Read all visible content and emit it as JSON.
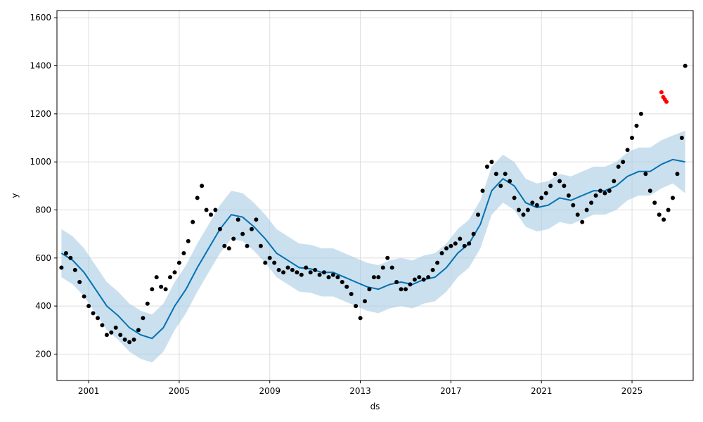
{
  "chart_data": {
    "type": "scatter",
    "title": "",
    "xlabel": "ds",
    "ylabel": "y",
    "xlim": [
      1999.6,
      2027.7
    ],
    "ylim": [
      90,
      1630
    ],
    "x_ticks": [
      2001,
      2005,
      2009,
      2013,
      2017,
      2021,
      2025
    ],
    "x_tick_labels": [
      "2001",
      "2005",
      "2009",
      "2013",
      "2017",
      "2021",
      "2025"
    ],
    "y_ticks": [
      200,
      400,
      600,
      800,
      1000,
      1200,
      1400,
      1600
    ],
    "y_tick_labels": [
      "200",
      "400",
      "600",
      "800",
      "1000",
      "1200",
      "1400",
      "1600"
    ],
    "grid": true,
    "colors": {
      "observed": "#000000",
      "forecast": "#0072B2",
      "interval": "#a6cbe3",
      "outliers": "#ff0000"
    },
    "series": [
      {
        "role": "observed",
        "mark": "scatter",
        "x": [
          1999.8,
          2000.0,
          2000.2,
          2000.4,
          2000.6,
          2000.8,
          2001.0,
          2001.2,
          2001.4,
          2001.6,
          2001.8,
          2002.0,
          2002.2,
          2002.4,
          2002.6,
          2002.8,
          2003.0,
          2003.2,
          2003.4,
          2003.6,
          2003.8,
          2004.0,
          2004.2,
          2004.4,
          2004.6,
          2004.8,
          2005.0,
          2005.2,
          2005.4,
          2005.6,
          2005.8,
          2006.0,
          2006.2,
          2006.4,
          2006.6,
          2006.8,
          2007.0,
          2007.2,
          2007.4,
          2007.6,
          2007.8,
          2008.0,
          2008.2,
          2008.4,
          2008.6,
          2008.8,
          2009.0,
          2009.2,
          2009.4,
          2009.6,
          2009.8,
          2010.0,
          2010.2,
          2010.4,
          2010.6,
          2010.8,
          2011.0,
          2011.2,
          2011.4,
          2011.6,
          2011.8,
          2012.0,
          2012.2,
          2012.4,
          2012.6,
          2012.8,
          2013.0,
          2013.2,
          2013.4,
          2013.6,
          2013.8,
          2014.0,
          2014.2,
          2014.4,
          2014.6,
          2014.8,
          2015.0,
          2015.2,
          2015.4,
          2015.6,
          2015.8,
          2016.0,
          2016.2,
          2016.4,
          2016.6,
          2016.8,
          2017.0,
          2017.2,
          2017.4,
          2017.6,
          2017.8,
          2018.0,
          2018.2,
          2018.4,
          2018.6,
          2018.8,
          2019.0,
          2019.2,
          2019.4,
          2019.6,
          2019.8,
          2020.0,
          2020.2,
          2020.4,
          2020.6,
          2020.8,
          2021.0,
          2021.2,
          2021.4,
          2021.6,
          2021.8,
          2022.0,
          2022.2,
          2022.4,
          2022.6,
          2022.8,
          2023.0,
          2023.2,
          2023.4,
          2023.6,
          2023.8,
          2024.0,
          2024.2,
          2024.4,
          2024.6,
          2024.8,
          2025.0,
          2025.2,
          2025.4,
          2025.6,
          2025.8,
          2026.0,
          2026.2,
          2026.4,
          2026.6,
          2026.8,
          2027.0,
          2027.2,
          2027.35
        ],
        "y": [
          560,
          620,
          600,
          550,
          500,
          440,
          400,
          370,
          350,
          320,
          280,
          290,
          310,
          280,
          260,
          250,
          260,
          300,
          350,
          410,
          470,
          520,
          480,
          470,
          520,
          540,
          580,
          620,
          670,
          750,
          850,
          900,
          800,
          780,
          800,
          720,
          650,
          640,
          680,
          760,
          700,
          650,
          720,
          760,
          650,
          580,
          600,
          580,
          550,
          540,
          560,
          550,
          540,
          530,
          560,
          540,
          550,
          530,
          540,
          520,
          530,
          520,
          500,
          480,
          450,
          400,
          350,
          420,
          470,
          520,
          520,
          560,
          600,
          560,
          500,
          470,
          470,
          490,
          510,
          520,
          510,
          520,
          550,
          580,
          620,
          640,
          650,
          660,
          680,
          650,
          660,
          700,
          780,
          880,
          980,
          1000,
          950,
          900,
          950,
          920,
          850,
          800,
          780,
          800,
          830,
          820,
          850,
          870,
          900,
          950,
          920,
          900,
          860,
          820,
          780,
          750,
          800,
          830,
          860,
          880,
          870,
          880,
          920,
          980,
          1000,
          1050,
          1100,
          1150,
          1200,
          950,
          880,
          830,
          780,
          760,
          800,
          850,
          950,
          1100,
          1400
        ]
      },
      {
        "role": "outliers",
        "mark": "scatter",
        "x": [
          2026.3,
          2026.38,
          2026.45,
          2026.52
        ],
        "y": [
          1290,
          1270,
          1260,
          1250
        ]
      },
      {
        "role": "forecast",
        "mark": "line",
        "x": [
          1999.8,
          2000.3,
          2000.8,
          2001.3,
          2001.8,
          2002.3,
          2002.8,
          2003.3,
          2003.8,
          2004.3,
          2004.8,
          2005.3,
          2005.8,
          2006.3,
          2006.8,
          2007.3,
          2007.8,
          2008.3,
          2008.8,
          2009.3,
          2009.8,
          2010.3,
          2010.8,
          2011.3,
          2011.8,
          2012.3,
          2012.8,
          2013.3,
          2013.8,
          2014.3,
          2014.8,
          2015.3,
          2015.8,
          2016.3,
          2016.8,
          2017.3,
          2017.8,
          2018.3,
          2018.8,
          2019.3,
          2019.8,
          2020.3,
          2020.8,
          2021.3,
          2021.8,
          2022.3,
          2022.8,
          2023.3,
          2023.8,
          2024.3,
          2024.8,
          2025.3,
          2025.8,
          2026.3,
          2026.8,
          2027.35
        ],
        "y": [
          620,
          590,
          540,
          470,
          400,
          360,
          310,
          280,
          265,
          310,
          400,
          470,
          560,
          640,
          720,
          780,
          770,
          730,
          680,
          620,
          590,
          560,
          555,
          540,
          540,
          520,
          500,
          480,
          470,
          490,
          500,
          490,
          510,
          520,
          560,
          620,
          660,
          740,
          880,
          930,
          900,
          830,
          810,
          820,
          850,
          840,
          860,
          880,
          880,
          900,
          940,
          960,
          960,
          990,
          1010,
          1000
        ]
      },
      {
        "role": "interval",
        "mark": "area",
        "x": [
          1999.8,
          2000.3,
          2000.8,
          2001.3,
          2001.8,
          2002.3,
          2002.8,
          2003.3,
          2003.8,
          2004.3,
          2004.8,
          2005.3,
          2005.8,
          2006.3,
          2006.8,
          2007.3,
          2007.8,
          2008.3,
          2008.8,
          2009.3,
          2009.8,
          2010.3,
          2010.8,
          2011.3,
          2011.8,
          2012.3,
          2012.8,
          2013.3,
          2013.8,
          2014.3,
          2014.8,
          2015.3,
          2015.8,
          2016.3,
          2016.8,
          2017.3,
          2017.8,
          2018.3,
          2018.8,
          2019.3,
          2019.8,
          2020.3,
          2020.8,
          2021.3,
          2021.8,
          2022.3,
          2022.8,
          2023.3,
          2023.8,
          2024.3,
          2024.8,
          2025.3,
          2025.8,
          2026.3,
          2026.8,
          2027.35
        ],
        "lower": [
          520,
          490,
          440,
          370,
          300,
          260,
          210,
          180,
          165,
          210,
          300,
          370,
          460,
          540,
          620,
          680,
          670,
          630,
          580,
          520,
          490,
          460,
          455,
          440,
          440,
          420,
          400,
          380,
          370,
          390,
          400,
          390,
          410,
          420,
          460,
          520,
          560,
          640,
          780,
          830,
          800,
          730,
          710,
          720,
          750,
          740,
          760,
          780,
          780,
          800,
          840,
          860,
          860,
          890,
          910,
          870
        ],
        "upper": [
          720,
          690,
          640,
          570,
          500,
          460,
          410,
          380,
          365,
          410,
          500,
          570,
          660,
          740,
          820,
          880,
          870,
          830,
          780,
          720,
          690,
          660,
          655,
          640,
          640,
          620,
          600,
          580,
          570,
          590,
          600,
          590,
          610,
          620,
          660,
          720,
          760,
          840,
          980,
          1030,
          1000,
          930,
          910,
          920,
          950,
          940,
          960,
          980,
          980,
          1000,
          1040,
          1060,
          1060,
          1090,
          1110,
          1130
        ]
      }
    ]
  }
}
